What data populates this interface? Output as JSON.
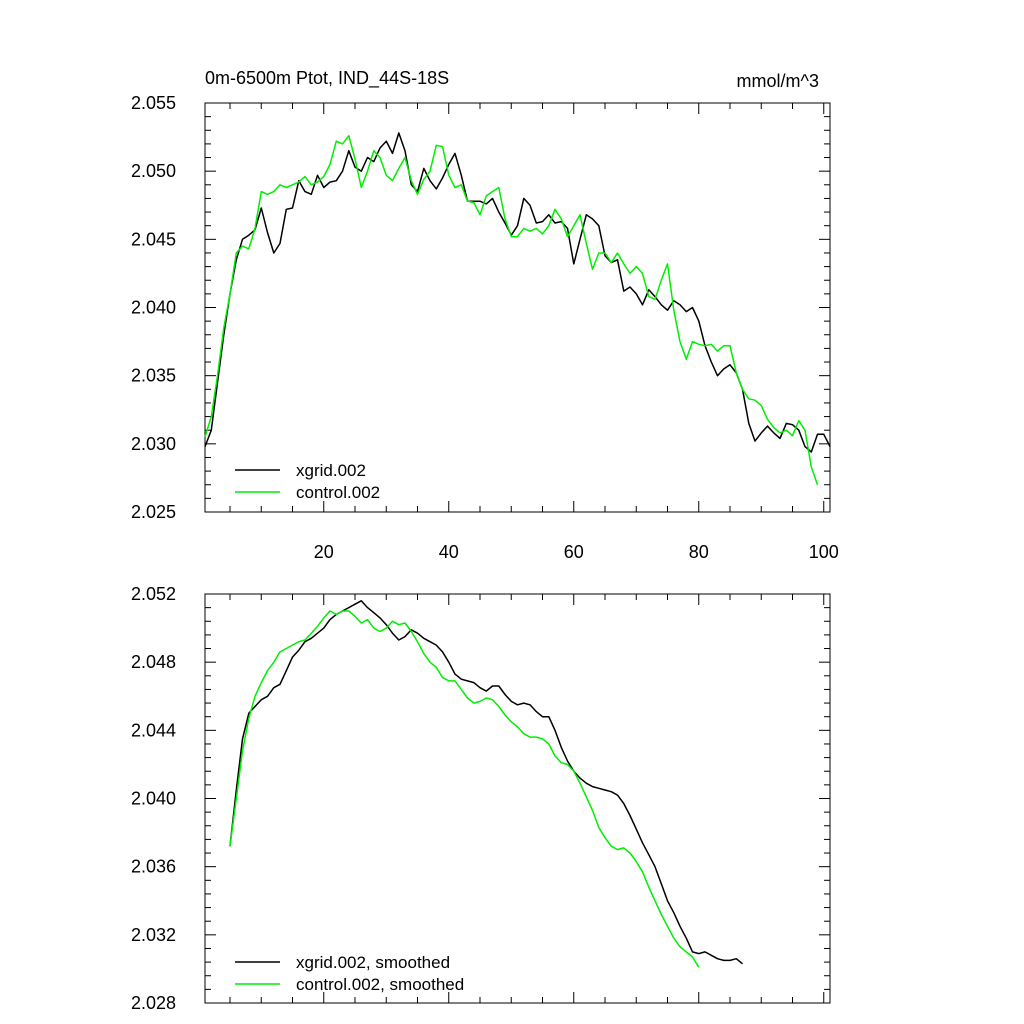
{
  "figure": {
    "title_left": "0m-6500m Ptot, IND_44S-18S",
    "title_right": "mmol/m^3"
  },
  "colors": {
    "xgrid": "#000000",
    "control": "#00ee00",
    "axis": "#000000"
  },
  "chart_data": [
    {
      "type": "line",
      "title": "0m-6500m Ptot, IND_44S-18S",
      "units": "mmol/m^3",
      "xlabel": "",
      "ylabel": "",
      "xlim": [
        1,
        101
      ],
      "ylim": [
        2.025,
        2.055
      ],
      "x_ticks": [
        20,
        40,
        60,
        80,
        100
      ],
      "x_tick_labels": [
        "20",
        "40",
        "60",
        "80",
        "100"
      ],
      "y_ticks": [
        2.025,
        2.03,
        2.035,
        2.04,
        2.045,
        2.05,
        2.055
      ],
      "y_tick_labels": [
        "2.025",
        "2.030",
        "2.035",
        "2.040",
        "2.045",
        "2.050",
        "2.055"
      ],
      "legend_position": "bottom-left",
      "series": [
        {
          "name": "xgrid.002",
          "color": "#000000",
          "x_start": 1,
          "values": [
            2.0298,
            2.031,
            2.0345,
            2.038,
            2.041,
            2.0435,
            2.045,
            2.0453,
            2.0457,
            2.0473,
            2.0455,
            2.044,
            2.0447,
            2.0472,
            2.0473,
            2.0493,
            2.0485,
            2.0483,
            2.0497,
            2.0488,
            2.0492,
            2.0493,
            2.05,
            2.0515,
            2.0503,
            2.05,
            2.051,
            2.0507,
            2.0517,
            2.0522,
            2.0513,
            2.0528,
            2.0515,
            2.049,
            2.0485,
            2.0502,
            2.0493,
            2.0487,
            2.0495,
            2.0505,
            2.0513,
            2.0497,
            2.0478,
            2.0478,
            2.0478,
            2.0476,
            2.048,
            2.047,
            2.0462,
            2.0453,
            2.046,
            2.048,
            2.0475,
            2.0462,
            2.0463,
            2.0468,
            2.0462,
            2.0463,
            2.0458,
            2.0432,
            2.045,
            2.0468,
            2.0465,
            2.046,
            2.0438,
            2.0433,
            2.0435,
            2.0412,
            2.0415,
            2.041,
            2.0402,
            2.0413,
            2.0408,
            2.0402,
            2.0398,
            2.0405,
            2.0402,
            2.0397,
            2.04,
            2.039,
            2.0372,
            2.036,
            2.035,
            2.0355,
            2.0358,
            2.0352,
            2.034,
            2.0315,
            2.0302,
            2.0308,
            2.0313,
            2.0308,
            2.0304,
            2.0315,
            2.0314,
            2.031,
            2.0298,
            2.0294,
            2.0307,
            2.0307,
            2.0298
          ]
        },
        {
          "name": "control.002",
          "color": "#00ee00",
          "x_start": 1,
          "values": [
            2.0305,
            2.032,
            2.035,
            2.0385,
            2.041,
            2.044,
            2.0445,
            2.0443,
            2.0458,
            2.0485,
            2.0483,
            2.0485,
            2.049,
            2.0488,
            2.049,
            2.0492,
            2.0496,
            2.049,
            2.0492,
            2.0496,
            2.0505,
            2.0522,
            2.052,
            2.0526,
            2.0509,
            2.0488,
            2.05,
            2.0515,
            2.051,
            2.0497,
            2.0493,
            2.0502,
            2.051,
            2.0493,
            2.0483,
            2.0494,
            2.05,
            2.0519,
            2.0518,
            2.0497,
            2.0488,
            2.049,
            2.0478,
            2.0477,
            2.0468,
            2.0482,
            2.0485,
            2.0488,
            2.0465,
            2.0452,
            2.0452,
            2.0458,
            2.0456,
            2.0458,
            2.0454,
            2.046,
            2.0472,
            2.0465,
            2.0452,
            2.046,
            2.0468,
            2.0447,
            2.0428,
            2.044,
            2.044,
            2.0433,
            2.044,
            2.0432,
            2.0425,
            2.043,
            2.0425,
            2.0408,
            2.0406,
            2.042,
            2.0432,
            2.0398,
            2.0375,
            2.0362,
            2.0375,
            2.0373,
            2.0372,
            2.0373,
            2.0368,
            2.0372,
            2.0372,
            2.0352,
            2.034,
            2.0333,
            2.0332,
            2.0328,
            2.0318,
            2.0312,
            2.0308,
            2.031,
            2.0306,
            2.0317,
            2.031,
            2.0283,
            2.027
          ]
        }
      ]
    },
    {
      "type": "line",
      "title": "",
      "xlabel": "",
      "ylabel": "",
      "xlim": [
        1,
        101
      ],
      "ylim": [
        2.028,
        2.052
      ],
      "x_ticks": [
        20,
        40,
        60,
        80,
        100
      ],
      "x_tick_labels": [],
      "y_ticks": [
        2.028,
        2.032,
        2.036,
        2.04,
        2.044,
        2.048,
        2.052
      ],
      "y_tick_labels": [
        "2.028",
        "2.032",
        "2.036",
        "2.040",
        "2.044",
        "2.048",
        "2.052"
      ],
      "legend_position": "bottom-left",
      "series": [
        {
          "name": "xgrid.002, smoothed",
          "color": "#000000",
          "x_start": 5,
          "values": [
            2.0372,
            2.0405,
            2.0435,
            2.045,
            2.0454,
            2.0458,
            2.046,
            2.0465,
            2.0467,
            2.0475,
            2.0483,
            2.0487,
            2.0492,
            2.0494,
            2.0497,
            2.05,
            2.0505,
            2.0508,
            2.051,
            2.0512,
            2.0514,
            2.0516,
            2.0512,
            2.0509,
            2.0506,
            2.0502,
            2.0497,
            2.0493,
            2.0495,
            2.0499,
            2.0497,
            2.0494,
            2.0492,
            2.049,
            2.0486,
            2.048,
            2.0473,
            2.047,
            2.0469,
            2.0468,
            2.0465,
            2.0463,
            2.0466,
            2.0466,
            2.0461,
            2.0457,
            2.0455,
            2.0456,
            2.0455,
            2.0451,
            2.0448,
            2.0448,
            2.044,
            2.043,
            2.0422,
            2.0416,
            2.0412,
            2.0409,
            2.0407,
            2.0406,
            2.0405,
            2.0404,
            2.0402,
            2.0397,
            2.039,
            2.0382,
            2.0374,
            2.0367,
            2.036,
            2.035,
            2.034,
            2.0333,
            2.0325,
            2.0318,
            2.031,
            2.0309,
            2.031,
            2.0308,
            2.0306,
            2.0305,
            2.0305,
            2.0306,
            2.0303
          ]
        },
        {
          "name": "control.002, smoothed",
          "color": "#00ee00",
          "x_start": 5,
          "values": [
            2.0372,
            2.04,
            2.0428,
            2.0447,
            2.046,
            2.0468,
            2.0475,
            2.048,
            2.0486,
            2.0488,
            2.049,
            2.0492,
            2.0493,
            2.0497,
            2.0501,
            2.0506,
            2.051,
            2.0508,
            2.051,
            2.051,
            2.0507,
            2.0503,
            2.0505,
            2.05,
            2.0498,
            2.05,
            2.0504,
            2.0502,
            2.0503,
            2.0498,
            2.0492,
            2.0485,
            2.048,
            2.0477,
            2.0471,
            2.0469,
            2.0469,
            2.0464,
            2.0459,
            2.0456,
            2.0457,
            2.0459,
            2.0458,
            2.0454,
            2.0449,
            2.0445,
            2.0442,
            2.0438,
            2.0436,
            2.0436,
            2.0435,
            2.0432,
            2.0425,
            2.0421,
            2.042,
            2.0416,
            2.0409,
            2.0401,
            2.0393,
            2.0383,
            2.0377,
            2.0372,
            2.037,
            2.0371,
            2.0368,
            2.0363,
            2.0357,
            2.0348,
            2.034,
            2.0332,
            2.0325,
            2.0318,
            2.0313,
            2.031,
            2.0307,
            2.0301
          ]
        }
      ]
    }
  ]
}
